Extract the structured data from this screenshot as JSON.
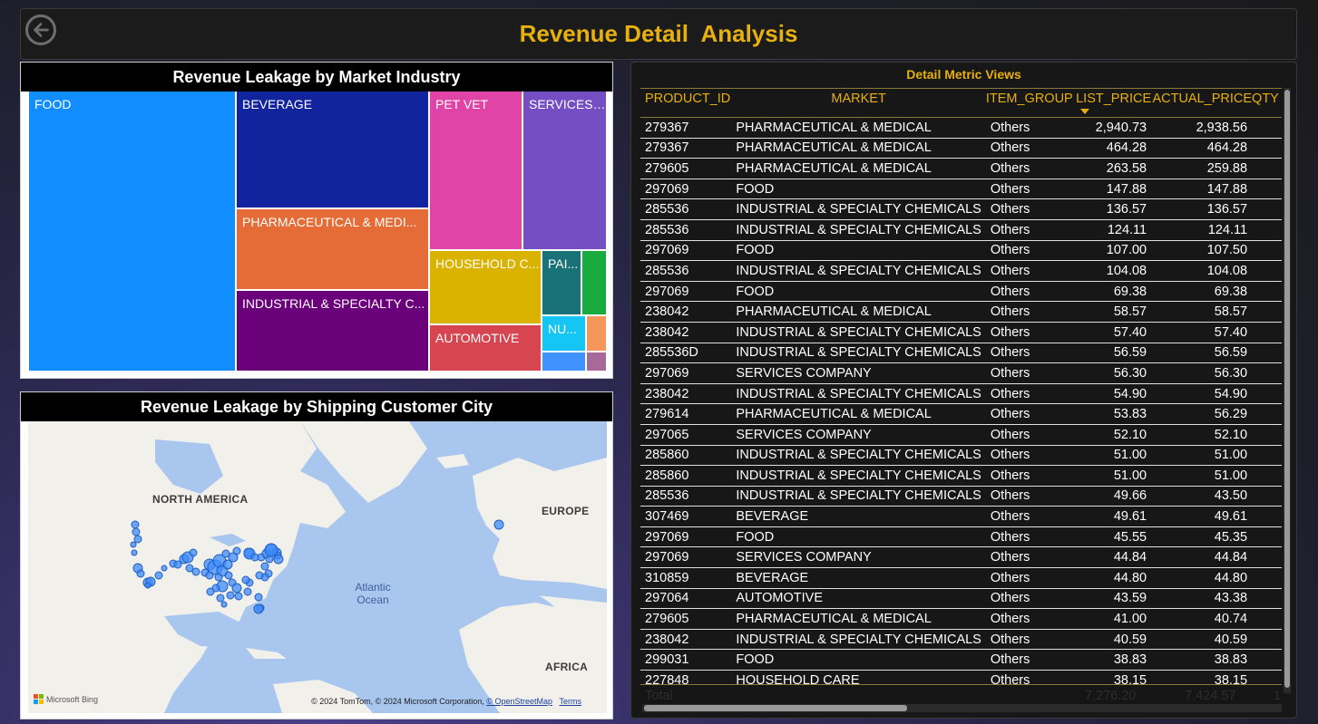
{
  "header": {
    "title": "Revenue Detail  Analysis",
    "back_icon": "back-arrow-circle-icon"
  },
  "treemap": {
    "title": "Revenue Leakage by Market Industry",
    "tiles": [
      {
        "label": "FOOD",
        "color": "#118dff"
      },
      {
        "label": "BEVERAGE",
        "color": "#12239e"
      },
      {
        "label": "PHARMACEUTICAL & MEDI...",
        "color": "#e66c37"
      },
      {
        "label": "INDUSTRIAL & SPECIALTY C...",
        "color": "#6b007b"
      },
      {
        "label": "PET VET",
        "color": "#e044a7"
      },
      {
        "label": "SERVICES ...",
        "color": "#744ec2"
      },
      {
        "label": "HOUSEHOLD C...",
        "color": "#d9b300"
      },
      {
        "label": "AUTOMOTIVE",
        "color": "#d64550"
      },
      {
        "label": "PAI...",
        "color": "#197278"
      },
      {
        "label": "",
        "color": "#1aab40"
      },
      {
        "label": "NU...",
        "color": "#15c6f4"
      },
      {
        "label": "",
        "color": "#f5975b"
      },
      {
        "label": "",
        "color": "#4092ff"
      },
      {
        "label": "",
        "color": "#a66999"
      }
    ]
  },
  "map": {
    "title": "Revenue Leakage by Shipping Customer City",
    "labels": {
      "north_america": "NORTH AMERICA",
      "europe": "EUROPE",
      "africa": "AFRICA",
      "ocean_line1": "Atlantic",
      "ocean_line2": "Ocean"
    },
    "bing": "Microsoft Bing",
    "attribution_text": "© 2024 TomTom, © 2024 Microsoft Corporation,",
    "attribution_link": "© OpenStreetMap",
    "terms": "Terms",
    "bubble_color": "#3d8bfd"
  },
  "detail": {
    "title": "Detail Metric Views",
    "columns": [
      "PRODUCT_ID",
      "MARKET",
      "ITEM_GROUP",
      "LIST_PRICE",
      "ACTUAL_PRICE",
      "QTY"
    ],
    "rows": [
      [
        "279367",
        "PHARMACEUTICAL & MEDICAL",
        "Others",
        "2,940.73",
        "2,938.56"
      ],
      [
        "279367",
        "PHARMACEUTICAL & MEDICAL",
        "Others",
        "464.28",
        "464.28"
      ],
      [
        "279605",
        "PHARMACEUTICAL & MEDICAL",
        "Others",
        "263.58",
        "259.88"
      ],
      [
        "297069",
        "FOOD",
        "Others",
        "147.88",
        "147.88"
      ],
      [
        "285536",
        "INDUSTRIAL & SPECIALTY CHEMICALS",
        "Others",
        "136.57",
        "136.57"
      ],
      [
        "285536",
        "INDUSTRIAL & SPECIALTY CHEMICALS",
        "Others",
        "124.11",
        "124.11"
      ],
      [
        "297069",
        "FOOD",
        "Others",
        "107.00",
        "107.50"
      ],
      [
        "285536",
        "INDUSTRIAL & SPECIALTY CHEMICALS",
        "Others",
        "104.08",
        "104.08"
      ],
      [
        "297069",
        "FOOD",
        "Others",
        "69.38",
        "69.38"
      ],
      [
        "238042",
        "PHARMACEUTICAL & MEDICAL",
        "Others",
        "58.57",
        "58.57"
      ],
      [
        "238042",
        "INDUSTRIAL & SPECIALTY CHEMICALS",
        "Others",
        "57.40",
        "57.40"
      ],
      [
        "285536D",
        "INDUSTRIAL & SPECIALTY CHEMICALS",
        "Others",
        "56.59",
        "56.59"
      ],
      [
        "297069",
        "SERVICES COMPANY",
        "Others",
        "56.30",
        "56.30"
      ],
      [
        "238042",
        "INDUSTRIAL & SPECIALTY CHEMICALS",
        "Others",
        "54.90",
        "54.90"
      ],
      [
        "279614",
        "PHARMACEUTICAL & MEDICAL",
        "Others",
        "53.83",
        "56.29"
      ],
      [
        "297065",
        "SERVICES COMPANY",
        "Others",
        "52.10",
        "52.10"
      ],
      [
        "285860",
        "INDUSTRIAL & SPECIALTY CHEMICALS",
        "Others",
        "51.00",
        "51.00"
      ],
      [
        "285860",
        "INDUSTRIAL & SPECIALTY CHEMICALS",
        "Others",
        "51.00",
        "51.00"
      ],
      [
        "285536",
        "INDUSTRIAL & SPECIALTY CHEMICALS",
        "Others",
        "49.66",
        "43.50"
      ],
      [
        "307469",
        "BEVERAGE",
        "Others",
        "49.61",
        "49.61"
      ],
      [
        "297069",
        "FOOD",
        "Others",
        "45.55",
        "45.35"
      ],
      [
        "297069",
        "SERVICES COMPANY",
        "Others",
        "44.84",
        "44.84"
      ],
      [
        "310859",
        "BEVERAGE",
        "Others",
        "44.80",
        "44.80"
      ],
      [
        "297064",
        "AUTOMOTIVE",
        "Others",
        "43.59",
        "43.38"
      ],
      [
        "279605",
        "PHARMACEUTICAL & MEDICAL",
        "Others",
        "41.00",
        "40.74"
      ],
      [
        "238042",
        "INDUSTRIAL & SPECIALTY CHEMICALS",
        "Others",
        "40.59",
        "40.59"
      ],
      [
        "299031",
        "FOOD",
        "Others",
        "38.83",
        "38.83"
      ],
      [
        "227848",
        "HOUSEHOLD CARE",
        "Others",
        "38.15",
        "38.15"
      ]
    ],
    "total_label": "Total",
    "total_list_price": "7,276.20",
    "total_actual_price": "7,424.57",
    "total_qty": "1",
    "sorted_column": "LIST_PRICE",
    "accent_color": "#e6b00f"
  }
}
